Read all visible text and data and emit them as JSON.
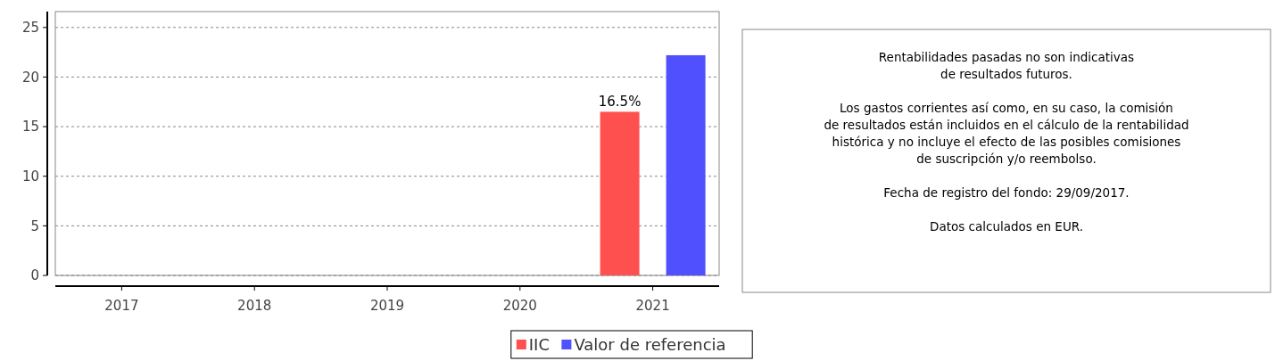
{
  "chart_data": {
    "type": "bar",
    "categories": [
      "2017",
      "2018",
      "2019",
      "2020",
      "2021"
    ],
    "series": [
      {
        "name": "IIC",
        "color": "#ff5050",
        "values": [
          null,
          null,
          null,
          null,
          16.5
        ],
        "value_labels": [
          null,
          null,
          null,
          null,
          "16.5%"
        ]
      },
      {
        "name": "Valor de referencia",
        "color": "#5050ff",
        "values": [
          null,
          null,
          null,
          null,
          22.2
        ]
      }
    ],
    "ylim": [
      0,
      26.6
    ],
    "yticks": [
      0,
      5,
      10,
      15,
      20,
      25
    ],
    "grid": "y",
    "legend": "bottom",
    "annotations": [
      "Rentabilidades pasadas no son indicativas\nde resultados futuros.",
      "Los gastos corrientes así como, en su caso, la comisión\nde resultados están incluidos en el cálculo de la rentabilidad\nhistórica y no incluye el efecto de las posibles comisiones\nde suscripción y/o reembolso.",
      "Fecha de registro del fondo: 29/09/2017.",
      "Datos calculados en EUR."
    ]
  }
}
